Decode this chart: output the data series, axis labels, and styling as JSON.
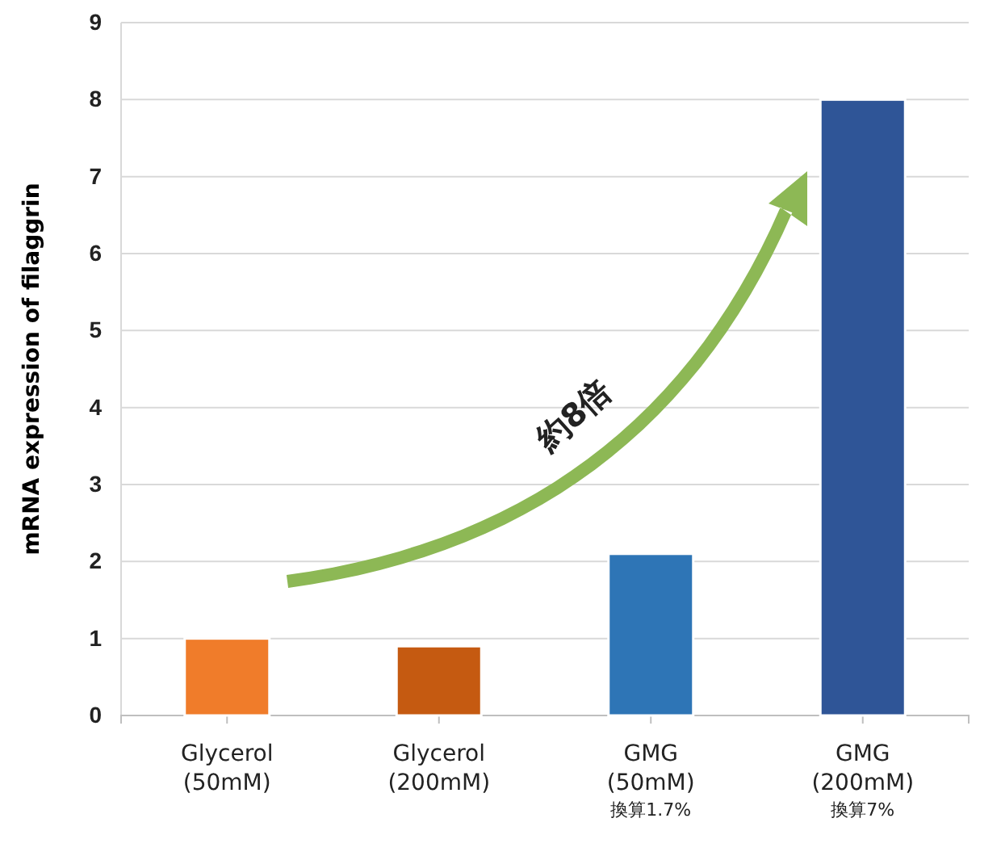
{
  "chart_data": {
    "type": "bar",
    "ylabel": "mRNA expression of filaggrin",
    "categories": [
      "Glycerol\n(50mM)",
      "Glycerol\n(200mM)",
      "GMG\n(50mM)\n換算1.7%",
      "GMG\n(200mM)\n換算7%"
    ],
    "values": [
      1,
      0.9,
      2.1,
      8
    ],
    "colors": [
      "#f07c2a",
      "#c55a11",
      "#2e75b6",
      "#2f5597"
    ],
    "ylim": [
      0,
      9
    ],
    "yticks": [
      0,
      1,
      2,
      3,
      4,
      5,
      6,
      7,
      8,
      9
    ],
    "grid": "y",
    "annotations": [
      "約8倍"
    ]
  }
}
